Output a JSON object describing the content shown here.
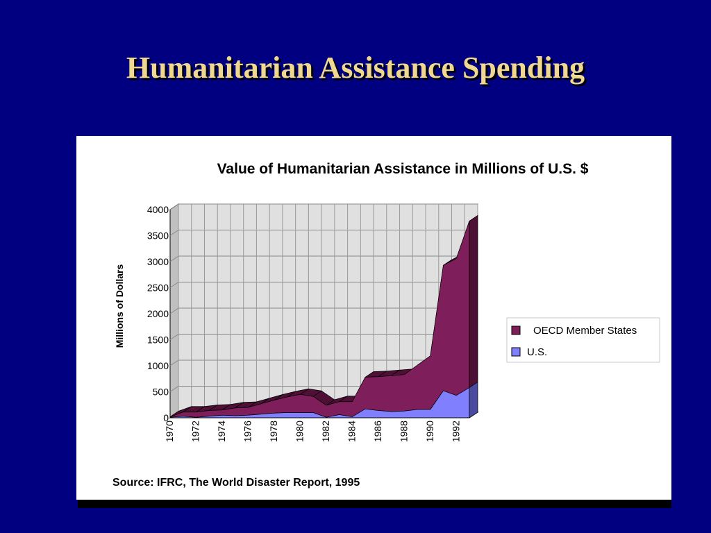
{
  "slide": {
    "title": "Humanitarian Assistance Spending",
    "background_color": "#000080",
    "title_color": "#f0d890"
  },
  "chart_data": {
    "type": "area",
    "stacked": true,
    "three_d": true,
    "title": "Value of Humanitarian Assistance in Millions of U.S. $",
    "xlabel": "",
    "ylabel": "Millions of Dollars",
    "ylim": [
      0,
      4000
    ],
    "yticks": [
      0,
      500,
      1000,
      1500,
      2000,
      2500,
      3000,
      3500,
      4000
    ],
    "categories": [
      "1970",
      "1971",
      "1972",
      "1973",
      "1974",
      "1975",
      "1976",
      "1977",
      "1978",
      "1979",
      "1980",
      "1981",
      "1982",
      "1983",
      "1984",
      "1985",
      "1986",
      "1987",
      "1988",
      "1989",
      "1990",
      "1991",
      "1992",
      "1993"
    ],
    "xtick_labels": [
      "1970",
      "1972",
      "1974",
      "1976",
      "1978",
      "1980",
      "1982",
      "1984",
      "1986",
      "1988",
      "1990",
      "1992"
    ],
    "grid": true,
    "legend_position": "right",
    "series": [
      {
        "name": "OECD Member States",
        "color": "#7e1e5a",
        "values": [
          10,
          80,
          100,
          110,
          100,
          150,
          150,
          200,
          250,
          300,
          350,
          310,
          230,
          250,
          290,
          610,
          650,
          690,
          700,
          850,
          1030,
          2410,
          2630,
          3200
        ]
      },
      {
        "name": "U.S.",
        "color": "#8080ff",
        "values": [
          10,
          30,
          10,
          30,
          50,
          40,
          50,
          70,
          90,
          100,
          100,
          100,
          10,
          60,
          20,
          170,
          140,
          120,
          130,
          160,
          160,
          520,
          430,
          580
        ]
      }
    ],
    "source": "Source: IFRC, The World Disaster Report, 1995"
  }
}
